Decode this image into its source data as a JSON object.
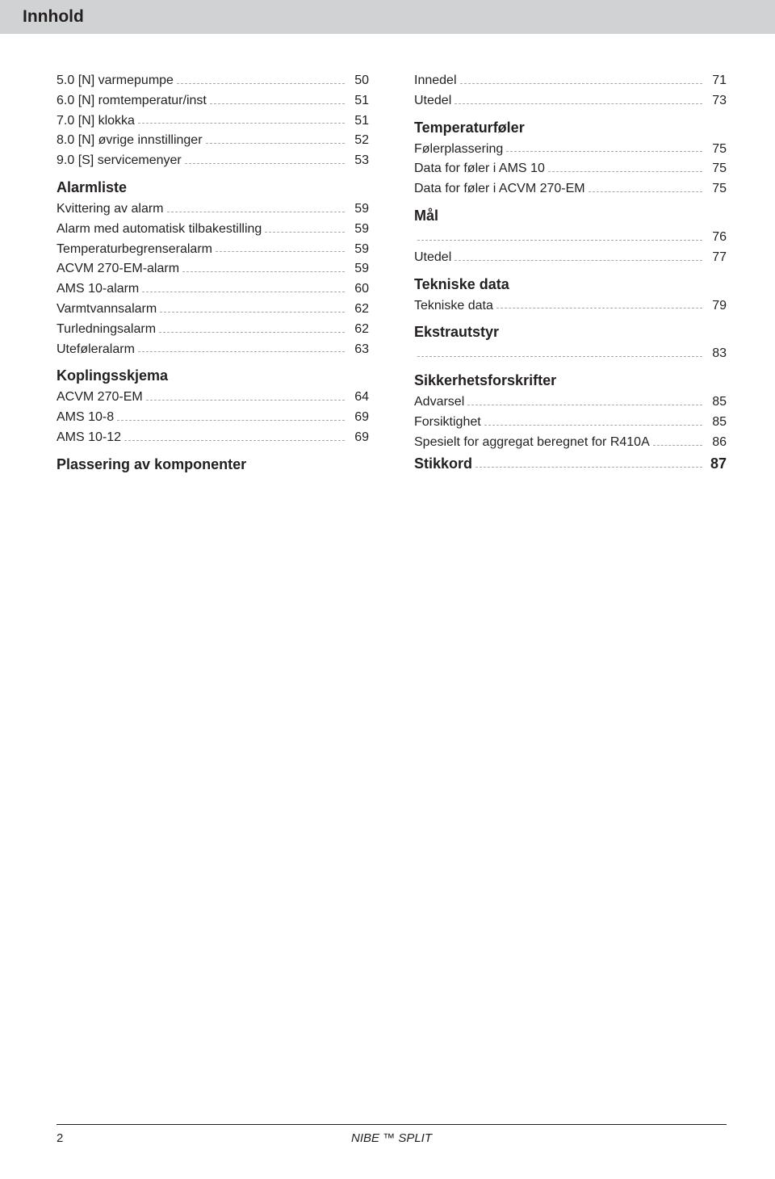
{
  "header": {
    "title": "Innhold"
  },
  "left": {
    "items1": [
      {
        "label": "5.0 [N] varmepumpe",
        "page": "50"
      },
      {
        "label": "6.0 [N] romtemperatur/inst",
        "page": "51"
      },
      {
        "label": "7.0 [N] klokka",
        "page": "51"
      },
      {
        "label": "8.0 [N] øvrige innstillinger",
        "page": "52"
      },
      {
        "label": "9.0 [S] servicemenyer",
        "page": "53"
      }
    ],
    "section1": "Alarmliste",
    "items2": [
      {
        "label": "Kvittering av alarm",
        "page": "59"
      },
      {
        "label": "Alarm med automatisk tilbakestilling",
        "page": "59"
      },
      {
        "label": "Temperaturbegrenseralarm",
        "page": "59"
      },
      {
        "label": "ACVM 270-EM-alarm",
        "page": "59"
      },
      {
        "label": "AMS 10-alarm",
        "page": "60"
      },
      {
        "label": "Varmtvannsalarm",
        "page": "62"
      },
      {
        "label": "Turledningsalarm",
        "page": "62"
      },
      {
        "label": "Uteføleralarm",
        "page": "63"
      }
    ],
    "section2": "Koplingsskjema",
    "items3": [
      {
        "label": "ACVM 270-EM",
        "page": "64"
      },
      {
        "label": "AMS 10-8",
        "page": "69"
      },
      {
        "label": "AMS 10-12",
        "page": "69"
      }
    ],
    "section3": "Plassering av komponenter"
  },
  "right": {
    "items1": [
      {
        "label": "Innedel",
        "page": "71"
      },
      {
        "label": "Utedel",
        "page": "73"
      }
    ],
    "section1": "Temperaturføler",
    "items2": [
      {
        "label": "Følerplassering",
        "page": "75"
      },
      {
        "label": "Data for føler i AMS 10",
        "page": "75"
      },
      {
        "label": "Data for føler i ACVM 270-EM",
        "page": "75"
      }
    ],
    "section2": "Mål",
    "items3": [
      {
        "label": "",
        "page": "76"
      },
      {
        "label": "Utedel",
        "page": "77"
      }
    ],
    "section3": "Tekniske data",
    "items4": [
      {
        "label": "Tekniske data",
        "page": "79"
      }
    ],
    "section4": "Ekstrautstyr",
    "items5": [
      {
        "label": "",
        "page": "83"
      }
    ],
    "section5": "Sikkerhetsforskrifter",
    "items6": [
      {
        "label": "Advarsel",
        "page": "85"
      },
      {
        "label": "Forsiktighet",
        "page": "85"
      },
      {
        "label": "Spesielt for aggregat beregnet for R410A",
        "page": "86"
      }
    ],
    "section6": {
      "label": "Stikkord",
      "page": "87"
    }
  },
  "footer": {
    "pagenum": "2",
    "brand": "NIBE ™ SPLIT"
  }
}
